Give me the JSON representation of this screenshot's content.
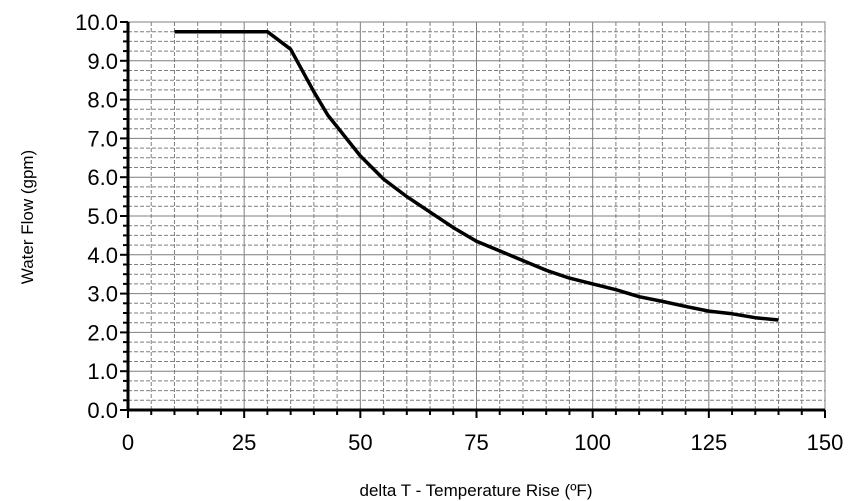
{
  "chart_data": {
    "type": "line",
    "title": "",
    "xlabel": "delta T - Temperature Rise (ºF)",
    "ylabel": "Water Flow (gpm)",
    "xlim": [
      0,
      150
    ],
    "ylim": [
      0,
      10
    ],
    "xticks": [
      "0",
      "25",
      "50",
      "75",
      "100",
      "125",
      "150"
    ],
    "yticks": [
      "0.0",
      "1.0",
      "2.0",
      "3.0",
      "4.0",
      "5.0",
      "6.0",
      "7.0",
      "8.0",
      "9.0",
      "10.0"
    ],
    "grid": true,
    "legend": "none",
    "series": [
      {
        "color": "#000000",
        "x": [
          10,
          30,
          35,
          40,
          43,
          50,
          55,
          60,
          65,
          70,
          75,
          80,
          85,
          90,
          95,
          100,
          105,
          110,
          115,
          120,
          125,
          130,
          135,
          140
        ],
        "y": [
          9.75,
          9.75,
          9.3,
          8.2,
          7.6,
          6.55,
          5.95,
          5.5,
          5.1,
          4.7,
          4.35,
          4.1,
          3.85,
          3.6,
          3.4,
          3.25,
          3.1,
          2.92,
          2.8,
          2.67,
          2.55,
          2.48,
          2.38,
          2.32
        ]
      }
    ]
  }
}
